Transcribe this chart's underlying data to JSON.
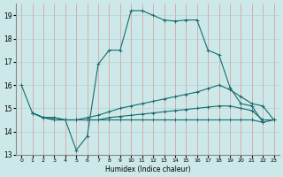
{
  "xlabel": "Humidex (Indice chaleur)",
  "background_color": "#cce8e8",
  "grid_color_v": "#e08080",
  "grid_color_h": "#b0cccc",
  "line_color": "#1a6b6b",
  "xlim": [
    -0.5,
    23.5
  ],
  "ylim": [
    13,
    19.5
  ],
  "yticks": [
    13,
    14,
    15,
    16,
    17,
    18,
    19
  ],
  "xticks": [
    0,
    1,
    2,
    3,
    4,
    5,
    6,
    7,
    8,
    9,
    10,
    11,
    12,
    13,
    14,
    15,
    16,
    17,
    18,
    19,
    20,
    21,
    22,
    23
  ],
  "lines": [
    {
      "x": [
        0,
        1,
        2,
        3,
        4,
        5,
        6,
        7,
        8,
        9,
        10,
        11,
        12,
        13,
        14,
        15,
        16,
        17,
        18,
        19,
        20,
        21,
        22
      ],
      "y": [
        16.0,
        14.8,
        14.6,
        14.5,
        14.5,
        13.2,
        13.8,
        16.9,
        17.5,
        17.5,
        19.2,
        19.2,
        19.0,
        18.8,
        18.75,
        18.8,
        18.8,
        17.5,
        17.3,
        15.9,
        15.2,
        15.1,
        14.4
      ]
    },
    {
      "x": [
        1,
        2,
        3,
        4,
        5,
        6,
        7,
        8,
        9,
        10,
        11,
        12,
        13,
        14,
        15,
        16,
        17,
        18,
        19,
        20,
        21,
        22,
        23
      ],
      "y": [
        14.8,
        14.6,
        14.6,
        14.5,
        14.5,
        14.6,
        14.7,
        14.85,
        15.0,
        15.1,
        15.2,
        15.3,
        15.4,
        15.5,
        15.6,
        15.7,
        15.85,
        16.0,
        15.8,
        15.5,
        15.2,
        15.1,
        14.5
      ]
    },
    {
      "x": [
        1,
        2,
        3,
        4,
        5,
        6,
        7,
        8,
        9,
        10,
        11,
        12,
        13,
        14,
        15,
        16,
        17,
        18,
        19,
        20,
        21,
        22,
        23
      ],
      "y": [
        14.8,
        14.6,
        14.6,
        14.5,
        14.5,
        14.5,
        14.5,
        14.6,
        14.65,
        14.7,
        14.75,
        14.8,
        14.85,
        14.9,
        14.95,
        15.0,
        15.05,
        15.1,
        15.1,
        15.0,
        14.9,
        14.5,
        14.5
      ]
    },
    {
      "x": [
        1,
        2,
        3,
        4,
        5,
        6,
        7,
        8,
        9,
        10,
        11,
        12,
        13,
        14,
        15,
        16,
        17,
        18,
        19,
        20,
        21,
        22,
        23
      ],
      "y": [
        14.8,
        14.6,
        14.5,
        14.5,
        14.5,
        14.5,
        14.5,
        14.5,
        14.5,
        14.5,
        14.5,
        14.5,
        14.5,
        14.5,
        14.5,
        14.5,
        14.5,
        14.5,
        14.5,
        14.5,
        14.5,
        14.4,
        14.5
      ]
    }
  ]
}
